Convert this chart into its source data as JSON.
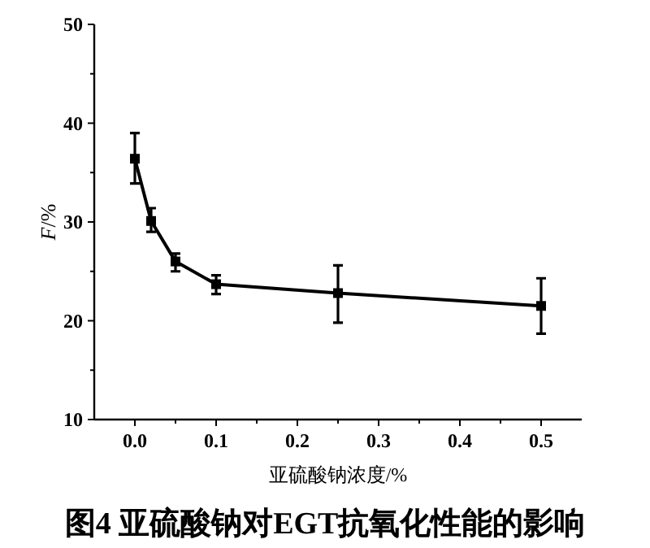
{
  "chart_data": {
    "type": "line",
    "title": "图4 亚硫酸钠对EGT抗氧化性能的影响",
    "xlabel": "亚硫酸钠浓度/%",
    "ylabel": "*F*/%",
    "x": [
      0,
      0.02,
      0.05,
      0.1,
      0.25,
      0.5
    ],
    "series": [
      {
        "color": "#000000",
        "values": [
          36.4,
          30.1,
          26.0,
          23.7,
          22.8,
          21.5
        ],
        "errors": [
          [
            33.9,
            39.0
          ],
          [
            29.0,
            31.4
          ],
          [
            25.0,
            26.8
          ],
          [
            22.7,
            24.6
          ],
          [
            19.8,
            25.6
          ],
          [
            18.7,
            24.3
          ]
        ]
      }
    ],
    "xlim": [
      -0.05,
      0.55
    ],
    "xticks": [
      {
        "value": 0,
        "label": "0.0"
      },
      {
        "value": 0.05,
        "label": null
      },
      0.1,
      {
        "value": 0.15,
        "label": null
      },
      0.2,
      {
        "value": 0.25,
        "label": null
      },
      0.3,
      {
        "value": 0.35,
        "label": null
      },
      0.4,
      {
        "value": 0.45,
        "label": null
      },
      0.5
    ],
    "ylim": [
      10,
      50
    ],
    "yticks": [
      10,
      {
        "value": 15,
        "label": null
      },
      20,
      {
        "value": 25,
        "label": null
      },
      30,
      {
        "value": 35,
        "label": null
      },
      40,
      {
        "value": 45,
        "label": null
      },
      50
    ],
    "grid": false,
    "marker": "square",
    "line_style": "solid"
  }
}
